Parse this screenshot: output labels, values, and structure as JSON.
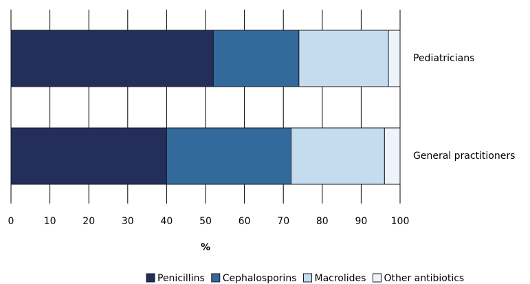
{
  "chart_data": {
    "type": "bar",
    "orientation": "horizontal",
    "stacked": true,
    "categories": [
      "Pediatricians",
      "General practitioners"
    ],
    "series": [
      {
        "name": "Penicillins",
        "color": "#232f5a",
        "values": [
          52,
          40
        ]
      },
      {
        "name": "Cephalosporins",
        "color": "#336a9c",
        "values": [
          22,
          32
        ]
      },
      {
        "name": "Macrolides",
        "color": "#c5dcef",
        "values": [
          23,
          24
        ]
      },
      {
        "name": "Other antibiotics",
        "color": "#eef4fb",
        "values": [
          3,
          4
        ]
      }
    ],
    "x_label": "%",
    "xlim": [
      0,
      100
    ],
    "xticks": [
      0,
      10,
      20,
      30,
      40,
      50,
      60,
      70,
      80,
      90,
      100
    ],
    "grid": true,
    "legend": "bottom"
  }
}
